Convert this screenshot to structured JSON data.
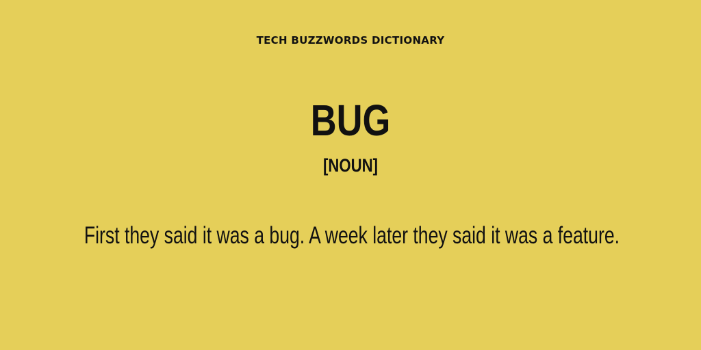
{
  "header": {
    "title": "TECH BUZZWORDS DICTIONARY"
  },
  "entry": {
    "term": "BUG",
    "part_of_speech": "[NOUN]",
    "definition": "First they said it was a bug. A week later they said it was a feature."
  },
  "colors": {
    "background": "#E5CF59",
    "text": "#111111"
  }
}
